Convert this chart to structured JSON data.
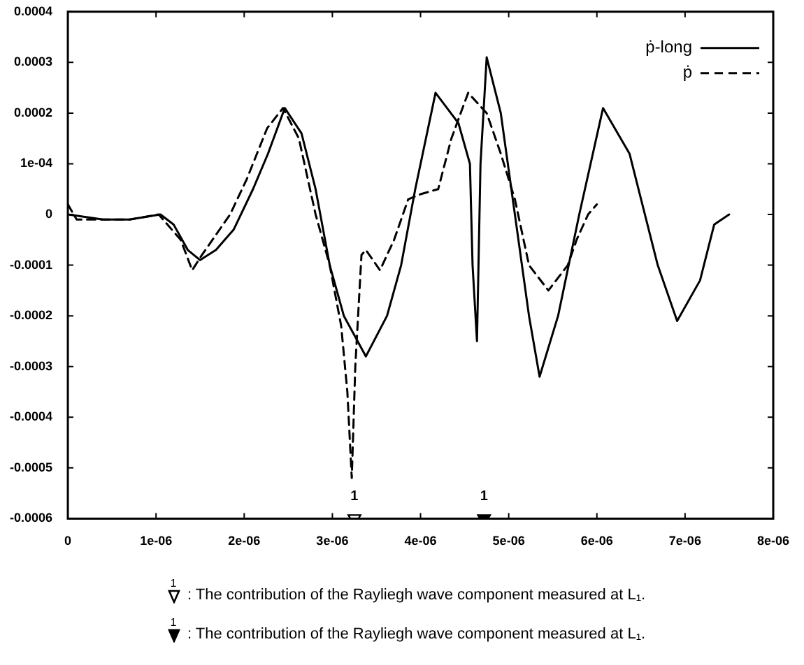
{
  "chart_data": {
    "type": "line",
    "xlim": [
      0,
      8e-06
    ],
    "xticks": [
      0,
      {
        "value": 1e-06,
        "label": "1e-06"
      },
      {
        "value": 2e-06,
        "label": "2e-06"
      },
      {
        "value": 3e-06,
        "label": "3e-06"
      },
      {
        "value": 4e-06,
        "label": "4e-06"
      },
      {
        "value": 5e-06,
        "label": "5e-06"
      },
      {
        "value": 6e-06,
        "label": "6e-06"
      },
      {
        "value": 7e-06,
        "label": "7e-06"
      },
      {
        "value": 8e-06,
        "label": "8e-06"
      }
    ],
    "ylim": [
      -0.0006,
      0.0004
    ],
    "yticks": [
      -0.0006,
      -0.0005,
      -0.0004,
      -0.0003,
      -0.0002,
      -0.0001,
      0,
      {
        "value": 0.0001,
        "label": "1e-04"
      },
      0.0002,
      0.0003,
      0.0004
    ],
    "grid": false,
    "legend": "top right",
    "marker": "none",
    "series": [
      {
        "name": "ṗ-long",
        "color": "#000000",
        "line_style": "solid",
        "x": [
          0,
          4e-07,
          7e-07,
          1.05e-06,
          1.2e-06,
          1.36e-06,
          1.5e-06,
          1.68e-06,
          1.88e-06,
          2.1e-06,
          2.27e-06,
          2.46e-06,
          2.65e-06,
          2.81e-06,
          2.97e-06,
          3.13e-06,
          3.38e-06,
          3.62e-06,
          3.78e-06,
          3.94e-06,
          4.17e-06,
          4.43e-06,
          4.56e-06,
          4.59e-06,
          4.64e-06,
          4.68e-06,
          4.75e-06,
          4.91e-06,
          5.07e-06,
          5.23e-06,
          5.35e-06,
          5.56e-06,
          5.8e-06,
          6.07e-06,
          6.37e-06,
          6.69e-06,
          6.91e-06,
          7.17e-06,
          7.33e-06,
          7.5e-06
        ],
        "values": [
          0,
          -1e-05,
          -1e-05,
          0,
          -2e-05,
          -7e-05,
          -9e-05,
          -7e-05,
          -3e-05,
          5e-05,
          0.00012,
          0.00021,
          0.00016,
          5e-05,
          -0.0001,
          -0.0002,
          -0.00028,
          -0.0002,
          -0.0001,
          5e-05,
          0.00024,
          0.00018,
          0.0001,
          -0.0001,
          -0.00025,
          0.0001,
          0.00031,
          0.0002,
          0,
          -0.0002,
          -0.00032,
          -0.0002,
          0,
          0.00021,
          0.00012,
          -0.0001,
          -0.00021,
          -0.00013,
          -2e-05,
          0
        ]
      },
      {
        "name": "ṗ",
        "color": "#000000",
        "line_style": "dashed",
        "x": [
          0,
          1e-07,
          4e-07,
          7e-07,
          1.03e-06,
          1.28e-06,
          1.41e-06,
          1.52e-06,
          1.84e-06,
          2.03e-06,
          2.26e-06,
          2.44e-06,
          2.62e-06,
          2.81e-06,
          2.97e-06,
          3.1e-06,
          3.17e-06,
          3.22e-06,
          3.26e-06,
          3.33e-06,
          3.38e-06,
          3.54e-06,
          3.7e-06,
          3.86e-06,
          4e-06,
          4.2e-06,
          4.35e-06,
          4.54e-06,
          4.75e-06,
          4.91e-06,
          5.07e-06,
          5.23e-06,
          5.45e-06,
          5.67e-06,
          5.77e-06,
          5.9e-06,
          6e-06
        ],
        "values": [
          2e-05,
          -1e-05,
          -1e-05,
          -1e-05,
          0,
          -5e-05,
          -0.00011,
          -8e-05,
          0,
          7e-05,
          0.00017,
          0.00021,
          0.00015,
          0,
          -0.0001,
          -0.00022,
          -0.00035,
          -0.00052,
          -0.0003,
          -8e-05,
          -7e-05,
          -0.00011,
          -5e-05,
          3e-05,
          4e-05,
          5e-05,
          0.00015,
          0.00024,
          0.0002,
          0.00012,
          3e-05,
          -0.0001,
          -0.00015,
          -0.0001,
          -5e-05,
          0,
          2e-05
        ]
      },
      {
        "type": "scatter",
        "marker": "triangle",
        "color": "#ffffff",
        "x": [
          3.25e-06
        ],
        "values": [
          -0.0006
        ]
      },
      {
        "type": "scatter",
        "marker": "triangle",
        "color": "#000000",
        "x": [
          4.72e-06
        ],
        "values": [
          -0.0006
        ]
      }
    ],
    "annotations": [
      {
        "text": "1",
        "x": 3.25e-06,
        "y": -0.0006
      },
      {
        "text": "1",
        "x": 4.72e-06,
        "y": -0.0006
      },
      "1",
      ": The contribution of the Rayliegh wave component measured at L₁.",
      "1",
      ": The contribution of the Rayliegh wave component measured at L₁."
    ]
  }
}
